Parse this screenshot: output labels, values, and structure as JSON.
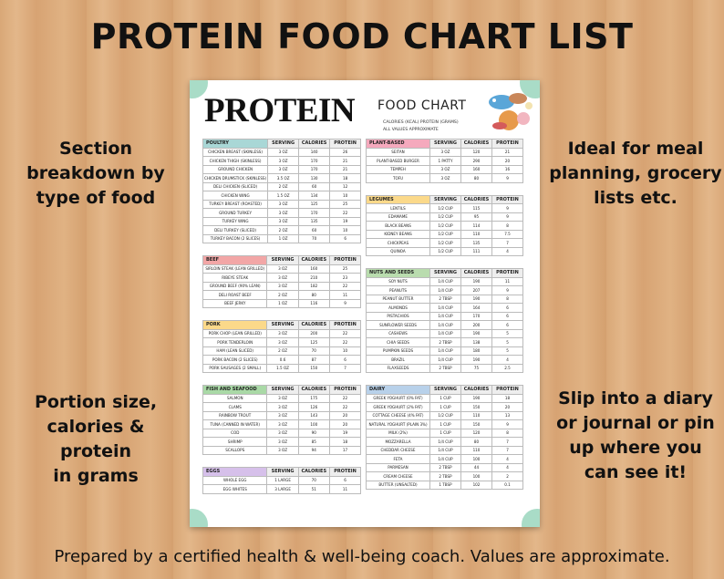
{
  "header": {
    "title": "PROTEIN FOOD CHART LIST"
  },
  "side_notes": {
    "left": [
      [
        "Section",
        "breakdown by",
        "type of food"
      ],
      [
        "Portion size,",
        "calories & protein",
        "in grams"
      ]
    ],
    "right": [
      [
        "Ideal for meal",
        "planning, grocery",
        "lists etc."
      ],
      [
        "Slip into a diary",
        "or journal or pin",
        "up where you",
        "can see it!"
      ]
    ]
  },
  "document": {
    "title_bold": "PROTEIN",
    "title_rest": "FOOD CHART",
    "subtitle": [
      "CALORIES (KCAL)  PROTEIN (GRAMS)",
      "ALL VALUES APPROXIMATE"
    ],
    "columns": [
      "SERVING",
      "CALORIES",
      "PROTEIN"
    ],
    "left_sections": [
      {
        "name": "POULTRY",
        "rows": [
          [
            "CHICKEN BREAST (SKINLESS)",
            "3 OZ",
            "140",
            "26"
          ],
          [
            "CHICKEN THIGH (SKINLESS)",
            "3 OZ",
            "170",
            "21"
          ],
          [
            "GROUND CHICKEN",
            "3 OZ",
            "170",
            "21"
          ],
          [
            "CHICKEN DRUMSTICK (SKINLESS)",
            "3.5 OZ",
            "130",
            "18"
          ],
          [
            "DELI CHICKEN (SLICED)",
            "2 OZ",
            "60",
            "12"
          ],
          [
            "CHICKEN WING",
            "1.5 OZ",
            "134",
            "10"
          ],
          [
            "TURKEY BREAST (ROASTED)",
            "3 OZ",
            "125",
            "25"
          ],
          [
            "GROUND TURKEY",
            "3 OZ",
            "170",
            "22"
          ],
          [
            "TURKEY WING",
            "3 OZ",
            "135",
            "19"
          ],
          [
            "DELI TURKEY (SLICED)",
            "2 OZ",
            "60",
            "10"
          ],
          [
            "TURKEY BACON (2 SLICES)",
            "1 OZ",
            "70",
            "6"
          ]
        ]
      },
      {
        "name": "BEEF",
        "rows": [
          [
            "SIRLOIN STEAK (LEAN GRILLED)",
            "3 OZ",
            "160",
            "25"
          ],
          [
            "RIBEYE STEAK",
            "3 OZ",
            "210",
            "23"
          ],
          [
            "GROUND BEEF (90% LEAN)",
            "3 OZ",
            "182",
            "22"
          ],
          [
            "DELI ROAST BEEF",
            "2 OZ",
            "80",
            "11"
          ],
          [
            "BEEF JERKY",
            "1 OZ",
            "116",
            "9"
          ]
        ]
      },
      {
        "name": "PORK",
        "rows": [
          [
            "PORK CHOP (LEAN GRILLED)",
            "3 OZ",
            "200",
            "22"
          ],
          [
            "PORK TENDERLOIN",
            "3 OZ",
            "125",
            "22"
          ],
          [
            "HAM (LEAN SLICED)",
            "2 OZ",
            "70",
            "10"
          ],
          [
            "PORK BACON (2 SLICES)",
            "0.6",
            "87",
            "6"
          ],
          [
            "PORK SAUSAGES (2 SMALL)",
            "1.5 OZ",
            "150",
            "7"
          ]
        ]
      },
      {
        "name": "FISH AND SEAFOOD",
        "rows": [
          [
            "SALMON",
            "3 OZ",
            "175",
            "22"
          ],
          [
            "CLAMS",
            "3 OZ",
            "126",
            "22"
          ],
          [
            "RAINBOW TROUT",
            "3 OZ",
            "143",
            "20"
          ],
          [
            "TUNA (CANNED IN WATER)",
            "3 OZ",
            "100",
            "20"
          ],
          [
            "COD",
            "3 OZ",
            "90",
            "19"
          ],
          [
            "SHRIMP",
            "3 OZ",
            "85",
            "18"
          ],
          [
            "SCALLOPS",
            "3 OZ",
            "94",
            "17"
          ]
        ]
      },
      {
        "name": "EGGS",
        "rows": [
          [
            "WHOLE EGG",
            "1 LARGE",
            "70",
            "6"
          ],
          [
            "EGG WHITES",
            "3 LARGE",
            "51",
            "11"
          ]
        ]
      }
    ],
    "right_sections": [
      {
        "name": "PLANT-BASED",
        "rows": [
          [
            "SEITAN",
            "3 OZ",
            "120",
            "21"
          ],
          [
            "PLANT-BASED BURGER",
            "1 PATTY",
            "290",
            "20"
          ],
          [
            "TEMPEH",
            "3 OZ",
            "160",
            "16"
          ],
          [
            "TOFU",
            "3 OZ",
            "80",
            "9"
          ]
        ]
      },
      {
        "name": "LEGUMES",
        "rows": [
          [
            "LENTILS",
            "1/2 CUP",
            "115",
            "9"
          ],
          [
            "EDAMAME",
            "1/2 CUP",
            "95",
            "9"
          ],
          [
            "BLACK BEANS",
            "1/2 CUP",
            "114",
            "8"
          ],
          [
            "KIDNEY BEANS",
            "1/2 CUP",
            "110",
            "7.5"
          ],
          [
            "CHICKPEAS",
            "1/2 CUP",
            "135",
            "7"
          ],
          [
            "QUINOA",
            "1/2 CUP",
            "111",
            "4"
          ]
        ]
      },
      {
        "name": "NUTS AND SEEDS",
        "rows": [
          [
            "SOY NUTS",
            "1/4 CUP",
            "190",
            "11"
          ],
          [
            "PEANUTS",
            "1/4 CUP",
            "207",
            "9"
          ],
          [
            "PEANUT BUTTER",
            "2 TBSP",
            "190",
            "8"
          ],
          [
            "ALMONDS",
            "1/4 CUP",
            "164",
            "6"
          ],
          [
            "PISTACHIOS",
            "1/4 CUP",
            "170",
            "6"
          ],
          [
            "SUNFLOWER SEEDS",
            "1/4 CUP",
            "200",
            "6"
          ],
          [
            "CASHEWS",
            "1/4 CUP",
            "190",
            "5"
          ],
          [
            "CHIA SEEDS",
            "2 TBSP",
            "138",
            "5"
          ],
          [
            "PUMPKIN SEEDS",
            "1/4 CUP",
            "180",
            "5"
          ],
          [
            "BRAZIL",
            "1/4 CUP",
            "190",
            "4"
          ],
          [
            "FLAXSEEDS",
            "2 TBSP",
            "75",
            "2.5"
          ]
        ]
      },
      {
        "name": "DAIRY",
        "rows": [
          [
            "GREEK YOGHURT (0% FAT)",
            "1 CUP",
            "190",
            "18"
          ],
          [
            "GREEK YOGHURT (2% FAT)",
            "1 CUP",
            "150",
            "20"
          ],
          [
            "COTTAGE CHEESE (4% FAT)",
            "1/2 CUP",
            "110",
            "13"
          ],
          [
            "NATURAL YOGHURT (PLAIN 3%)",
            "1 CUP",
            "150",
            "9"
          ],
          [
            "MILK (2%)",
            "1 CUP",
            "120",
            "8"
          ],
          [
            "MOZZARELLA",
            "1/4 CUP",
            "80",
            "7"
          ],
          [
            "CHEDDAR CHEESE",
            "1/4 CUP",
            "110",
            "7"
          ],
          [
            "FETA",
            "1/4 CUP",
            "100",
            "4"
          ],
          [
            "PARMESAN",
            "2 TBSP",
            "44",
            "4"
          ],
          [
            "CREAM CHEESE",
            "2 TBSP",
            "100",
            "2"
          ],
          [
            "BUTTER (UNSALTED)",
            "1 TBSP",
            "102",
            "0.1"
          ]
        ]
      }
    ]
  },
  "footer": "Prepared by a certified health & well-being coach. Values are approximate."
}
